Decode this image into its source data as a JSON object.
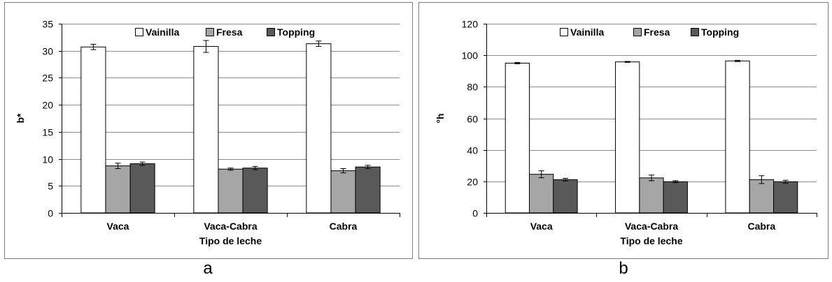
{
  "colors": {
    "vainilla": "#ffffff",
    "fresa": "#a6a6a6",
    "topping": "#595959",
    "grid": "#8c8c8c",
    "frame": "#7f7f7f"
  },
  "chart_data": [
    {
      "type": "bar",
      "panel_letter": "a",
      "xlabel": "Tipo de leche",
      "ylabel": "b*",
      "ylim": [
        0,
        35
      ],
      "yticks": [
        0,
        5,
        10,
        15,
        20,
        25,
        30,
        35
      ],
      "categories": [
        "Vaca",
        "Vaca-Cabra",
        "Cabra"
      ],
      "legend_position": "top-center",
      "grid": true,
      "series": [
        {
          "name": "Vainilla",
          "values": [
            30.7,
            30.8,
            31.3
          ],
          "errors": [
            0.5,
            1.1,
            0.5
          ]
        },
        {
          "name": "Fresa",
          "values": [
            8.7,
            8.1,
            7.8
          ],
          "errors": [
            0.5,
            0.2,
            0.4
          ]
        },
        {
          "name": "Topping",
          "values": [
            9.1,
            8.3,
            8.5
          ],
          "errors": [
            0.3,
            0.3,
            0.3
          ]
        }
      ]
    },
    {
      "type": "bar",
      "panel_letter": "b",
      "xlabel": "Tipo de leche",
      "ylabel": "°h",
      "ylim": [
        0,
        120
      ],
      "yticks": [
        0,
        20,
        40,
        60,
        80,
        100,
        120
      ],
      "categories": [
        "Vaca",
        "Vaca-Cabra",
        "Cabra"
      ],
      "legend_position": "top-center",
      "grid": true,
      "series": [
        {
          "name": "Vainilla",
          "values": [
            95.0,
            95.8,
            96.4
          ],
          "errors": [
            0.4,
            0.3,
            0.4
          ]
        },
        {
          "name": "Fresa",
          "values": [
            24.5,
            22.2,
            21.1
          ],
          "errors": [
            2.2,
            1.8,
            2.5
          ]
        },
        {
          "name": "Topping",
          "values": [
            21.1,
            19.8,
            19.8
          ],
          "errors": [
            0.8,
            0.6,
            0.9
          ]
        }
      ]
    }
  ]
}
